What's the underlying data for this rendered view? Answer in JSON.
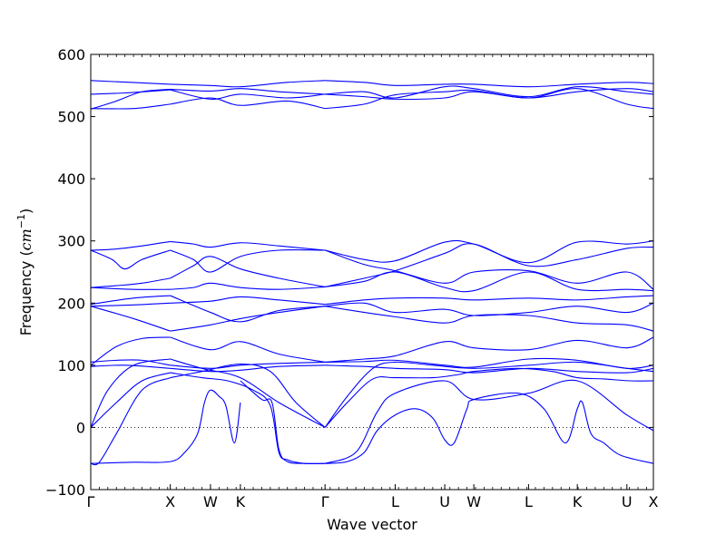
{
  "chart_data": {
    "type": "line",
    "title": "",
    "xlabel": "Wave vector",
    "ylabel": "Frequency (cm⁻¹)",
    "ylabel_main": "Frequency (",
    "ylabel_unit": "cm",
    "ylabel_exp": "−1",
    "ylabel_close": ")",
    "ylim": [
      -100,
      600
    ],
    "yticks": [
      -100,
      0,
      100,
      200,
      300,
      400,
      500,
      600
    ],
    "xlim": [
      0,
      6.58
    ],
    "grid": false,
    "legend": "none",
    "zero_line": {
      "y": 0,
      "style": "dotted"
    },
    "line_color": "#0000ff",
    "high_symmetry_points": [
      {
        "label": "Γ",
        "x": 0.0
      },
      {
        "label": "X",
        "x": 0.93
      },
      {
        "label": "W",
        "x": 1.4
      },
      {
        "label": "K",
        "x": 1.75
      },
      {
        "label": "Γ",
        "x": 2.74
      },
      {
        "label": "L",
        "x": 3.56
      },
      {
        "label": "U",
        "x": 4.14
      },
      {
        "label": "W",
        "x": 4.48
      },
      {
        "label": "L",
        "x": 5.12
      },
      {
        "label": "K",
        "x": 5.69
      },
      {
        "label": "U",
        "x": 6.27
      },
      {
        "label": "X",
        "x": 6.58
      }
    ],
    "minor_ticks_per_unit": 10,
    "series": [
      {
        "x": [
          0,
          0.3,
          0.6,
          0.93
        ],
        "values": [
          512,
          525,
          540,
          544
        ]
      },
      {
        "x": [
          0,
          0.4,
          0.93
        ],
        "values": [
          536,
          538,
          543
        ]
      },
      {
        "x": [
          0,
          0.93
        ],
        "values": [
          558,
          552
        ]
      },
      {
        "x": [
          0,
          0.5,
          0.93
        ],
        "values": [
          513,
          513,
          520
        ]
      },
      {
        "x": [
          0.93,
          1.4,
          1.75,
          2.2,
          2.74
        ],
        "values": [
          544,
          541,
          545,
          540,
          536
        ]
      },
      {
        "x": [
          0.93,
          1.4,
          1.75,
          2.3,
          2.74
        ],
        "values": [
          520,
          530,
          518,
          525,
          513
        ]
      },
      {
        "x": [
          0.93,
          1.4,
          1.75,
          2.3,
          2.74
        ],
        "values": [
          552,
          550,
          548,
          555,
          558
        ]
      },
      {
        "x": [
          0.93,
          1.4,
          1.75,
          2.3,
          2.74
        ],
        "values": [
          543,
          528,
          536,
          530,
          536
        ]
      },
      {
        "x": [
          2.74,
          3.2,
          3.56,
          4.14,
          4.48,
          5.12,
          5.69,
          6.27,
          6.58
        ],
        "values": [
          513,
          520,
          535,
          540,
          542,
          530,
          545,
          520,
          513
        ]
      },
      {
        "x": [
          2.74,
          3.2,
          3.56,
          4.14,
          4.48,
          5.12,
          5.69,
          6.27,
          6.58
        ],
        "values": [
          536,
          532,
          528,
          530,
          540,
          530,
          540,
          545,
          540
        ]
      },
      {
        "x": [
          2.74,
          3.2,
          3.56,
          4.14,
          4.48,
          5.12,
          5.69,
          6.27,
          6.58
        ],
        "values": [
          558,
          555,
          550,
          552,
          552,
          548,
          552,
          555,
          553
        ]
      },
      {
        "x": [
          2.74,
          3.2,
          3.56,
          4.14,
          4.48,
          5.12,
          5.69,
          6.27,
          6.58
        ],
        "values": [
          536,
          540,
          530,
          548,
          545,
          532,
          548,
          540,
          536
        ]
      },
      {
        "x": [
          0,
          0.3,
          0.6,
          0.93
        ],
        "values": [
          285,
          287,
          292,
          299
        ]
      },
      {
        "x": [
          0,
          0.25,
          0.4,
          0.6,
          0.93
        ],
        "values": [
          285,
          270,
          255,
          270,
          285
        ]
      },
      {
        "x": [
          0,
          0.3,
          0.6,
          0.93
        ],
        "values": [
          225,
          228,
          232,
          240
        ]
      },
      {
        "x": [
          0,
          0.5,
          0.93
        ],
        "values": [
          225,
          222,
          222
        ]
      },
      {
        "x": [
          0.93,
          1.2,
          1.4,
          1.75,
          2.2,
          2.74
        ],
        "values": [
          299,
          295,
          290,
          297,
          292,
          285
        ]
      },
      {
        "x": [
          0.93,
          1.2,
          1.4,
          1.75,
          2.2,
          2.74
        ],
        "values": [
          285,
          270,
          250,
          275,
          285,
          285
        ]
      },
      {
        "x": [
          0.93,
          1.2,
          1.4,
          1.75,
          2.2,
          2.74
        ],
        "values": [
          240,
          260,
          275,
          255,
          240,
          226
        ]
      },
      {
        "x": [
          0.93,
          1.2,
          1.4,
          1.75,
          2.2,
          2.74
        ],
        "values": [
          222,
          225,
          232,
          225,
          222,
          226
        ]
      },
      {
        "x": [
          2.74,
          3.2,
          3.56,
          4.14,
          4.48,
          5.12,
          5.69,
          6.27,
          6.58
        ],
        "values": [
          285,
          270,
          268,
          298,
          295,
          265,
          298,
          295,
          300
        ]
      },
      {
        "x": [
          2.74,
          3.2,
          3.56,
          4.14,
          4.48,
          5.12,
          5.69,
          6.27,
          6.58
        ],
        "values": [
          226,
          240,
          252,
          280,
          295,
          260,
          270,
          288,
          290
        ]
      },
      {
        "x": [
          2.74,
          3.2,
          3.56,
          4.14,
          4.48,
          5.12,
          5.69,
          6.27,
          6.58
        ],
        "values": [
          285,
          262,
          252,
          232,
          250,
          252,
          232,
          250,
          222
        ]
      },
      {
        "x": [
          2.74,
          3.2,
          3.56,
          4.14,
          4.48,
          5.12,
          5.69,
          6.27,
          6.58
        ],
        "values": [
          226,
          235,
          250,
          225,
          220,
          250,
          222,
          222,
          220
        ]
      },
      {
        "x": [
          0,
          0.5,
          0.93
        ],
        "values": [
          195,
          175,
          155
        ]
      },
      {
        "x": [
          0,
          0.5,
          0.93
        ],
        "values": [
          198,
          208,
          212
        ]
      },
      {
        "x": [
          0,
          0.5,
          0.93
        ],
        "values": [
          195,
          197,
          200
        ]
      },
      {
        "x": [
          0.93,
          1.4,
          1.75,
          2.2,
          2.74
        ],
        "values": [
          155,
          165,
          175,
          185,
          195
        ]
      },
      {
        "x": [
          0.93,
          1.4,
          1.75,
          2.2,
          2.74
        ],
        "values": [
          212,
          185,
          170,
          188,
          195
        ]
      },
      {
        "x": [
          0.93,
          1.4,
          1.75,
          2.2,
          2.74
        ],
        "values": [
          200,
          203,
          210,
          205,
          198
        ]
      },
      {
        "x": [
          2.74,
          3.2,
          3.56,
          4.14,
          4.48,
          5.12,
          5.69,
          6.27,
          6.58
        ],
        "values": [
          195,
          185,
          178,
          168,
          180,
          180,
          168,
          165,
          155
        ]
      },
      {
        "x": [
          2.74,
          3.2,
          3.56,
          4.14,
          4.48,
          5.12,
          5.69,
          6.27,
          6.58
        ],
        "values": [
          198,
          205,
          208,
          208,
          205,
          208,
          205,
          210,
          212
        ]
      },
      {
        "x": [
          2.74,
          3.2,
          3.56,
          4.14,
          4.48,
          5.12,
          5.69,
          6.27,
          6.58
        ],
        "values": [
          195,
          200,
          185,
          190,
          180,
          185,
          195,
          185,
          200
        ]
      },
      {
        "x": [
          0,
          0.3,
          0.6,
          0.93
        ],
        "values": [
          100,
          130,
          143,
          145
        ]
      },
      {
        "x": [
          0,
          0.3,
          0.6,
          0.93
        ],
        "values": [
          105,
          108,
          108,
          100
        ]
      },
      {
        "x": [
          0,
          0.4,
          0.93
        ],
        "values": [
          98,
          100,
          95
        ]
      },
      {
        "x": [
          0.93,
          1.4,
          1.75,
          2.2,
          2.74
        ],
        "values": [
          145,
          125,
          138,
          118,
          105
        ]
      },
      {
        "x": [
          0.93,
          1.4,
          1.75,
          2.2,
          2.74
        ],
        "values": [
          100,
          95,
          100,
          103,
          105
        ]
      },
      {
        "x": [
          0.93,
          1.4,
          1.75,
          2.2,
          2.74
        ],
        "values": [
          95,
          90,
          92,
          98,
          100
        ]
      },
      {
        "x": [
          2.74,
          3.2,
          3.56,
          4.14,
          4.48,
          5.12,
          5.69,
          6.27,
          6.58
        ],
        "values": [
          105,
          110,
          115,
          138,
          128,
          125,
          140,
          128,
          145
        ]
      },
      {
        "x": [
          2.74,
          3.2,
          3.56,
          4.14,
          4.48,
          5.12,
          5.69,
          6.27,
          6.58
        ],
        "values": [
          105,
          106,
          108,
          100,
          97,
          110,
          108,
          95,
          100
        ]
      },
      {
        "x": [
          2.74,
          3.2,
          3.56,
          4.14,
          4.48,
          5.12,
          5.69,
          6.27,
          6.58
        ],
        "values": [
          100,
          98,
          95,
          93,
          88,
          95,
          90,
          88,
          95
        ]
      },
      {
        "x": [
          0,
          0.3,
          0.6,
          0.93
        ],
        "values": [
          0,
          40,
          75,
          88
        ]
      },
      {
        "x": [
          0,
          0.2,
          0.5,
          0.93
        ],
        "values": [
          0,
          60,
          100,
          110
        ]
      },
      {
        "x": [
          0,
          0.1,
          0.3,
          0.6,
          0.93
        ],
        "values": [
          -58,
          -56,
          -10,
          60,
          80
        ]
      },
      {
        "x": [
          0,
          0.5,
          0.93,
          1.1,
          1.25,
          1.33,
          1.4,
          1.5,
          1.58,
          1.68,
          1.75
        ],
        "values": [
          -58,
          -56,
          -55,
          -40,
          -10,
          40,
          60,
          50,
          35,
          -25,
          40
        ]
      },
      {
        "x": [
          0.93,
          1.3,
          1.6,
          1.9,
          2.1,
          2.2,
          2.3,
          2.5,
          2.74
        ],
        "values": [
          88,
          80,
          75,
          60,
          35,
          -40,
          -52,
          -58,
          -58
        ]
      },
      {
        "x": [
          1.75,
          2.0,
          2.12,
          2.2,
          2.3,
          2.5,
          2.74
        ],
        "values": [
          75,
          45,
          40,
          -35,
          -55,
          -58,
          -58
        ]
      },
      {
        "x": [
          0.93,
          1.3,
          1.75,
          2.2,
          2.74
        ],
        "values": [
          110,
          95,
          80,
          40,
          0
        ]
      },
      {
        "x": [
          0.93,
          1.3,
          1.75,
          2.1,
          2.4,
          2.74
        ],
        "values": [
          80,
          90,
          102,
          90,
          40,
          0
        ]
      },
      {
        "x": [
          2.74,
          3.0,
          3.3,
          3.56,
          4.0,
          4.3,
          4.48,
          5.0,
          5.4,
          5.69,
          6.0,
          6.3,
          6.58
        ],
        "values": [
          0,
          40,
          78,
          80,
          80,
          85,
          90,
          95,
          90,
          80,
          78,
          75,
          75
        ]
      },
      {
        "x": [
          2.74,
          3.0,
          3.3,
          3.56,
          4.0,
          4.48,
          5.12,
          5.69,
          6.27,
          6.58
        ],
        "values": [
          0,
          50,
          95,
          105,
          100,
          95,
          100,
          105,
          95,
          90
        ]
      },
      {
        "x": [
          2.74,
          3.0,
          3.2,
          3.35,
          3.56,
          3.8,
          4.0,
          4.14,
          4.25,
          4.4,
          4.48,
          5.0,
          5.3,
          5.55,
          5.69,
          5.75,
          5.85,
          6.0,
          6.2,
          6.58
        ],
        "values": [
          -58,
          -55,
          -40,
          -5,
          20,
          30,
          15,
          -20,
          -25,
          30,
          45,
          55,
          30,
          -25,
          30,
          40,
          -10,
          -25,
          -45,
          -58
        ]
      },
      {
        "x": [
          2.74,
          3.1,
          3.35,
          3.56,
          4.14,
          4.48,
          5.12,
          5.69,
          6.27,
          6.58
        ],
        "values": [
          -58,
          -40,
          25,
          55,
          75,
          45,
          55,
          75,
          20,
          -5
        ]
      }
    ]
  }
}
